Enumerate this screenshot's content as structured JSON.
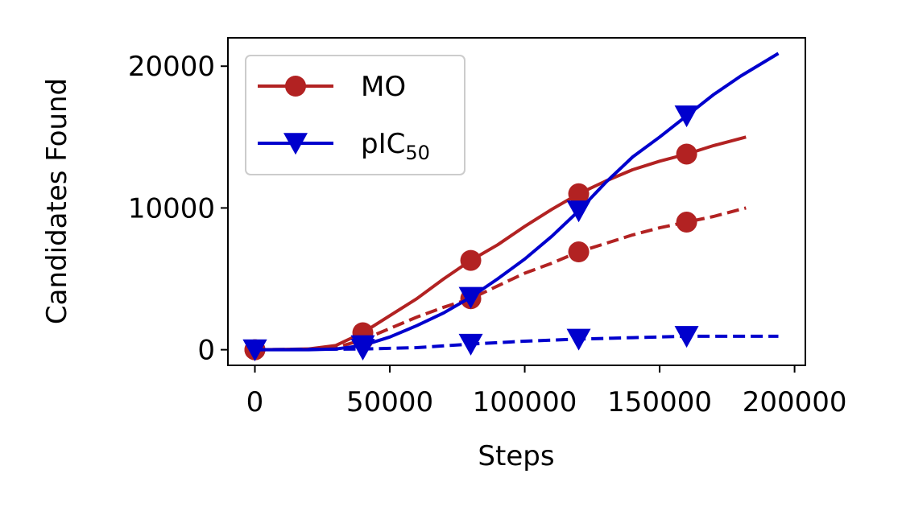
{
  "chart_data": {
    "type": "line",
    "xlabel": "Steps",
    "ylabel": "Candidates Found",
    "xlim": [
      -10000,
      204000
    ],
    "ylim": [
      -1100,
      22000
    ],
    "xticks": [
      {
        "value": 0,
        "label": "0"
      },
      {
        "value": 50000,
        "label": "50000"
      },
      {
        "value": 100000,
        "label": "100000"
      },
      {
        "value": 150000,
        "label": "150000"
      },
      {
        "value": 200000,
        "label": "200000"
      }
    ],
    "yticks": [
      {
        "value": 0,
        "label": "0"
      },
      {
        "value": 10000,
        "label": "10000"
      },
      {
        "value": 20000,
        "label": "20000"
      }
    ],
    "grid": false,
    "legend_position": "top-left",
    "legend": [
      {
        "label": "MO",
        "sub": "",
        "color": "#b22222",
        "marker": "circle"
      },
      {
        "label": "pIC",
        "sub": "50",
        "color": "#0000cd",
        "marker": "triangle-down"
      }
    ],
    "series": [
      {
        "legend_index": 0,
        "color": "#b22222",
        "linestyle": "solid",
        "marker": "circle",
        "x": [
          0,
          10000,
          20000,
          30000,
          40000,
          50000,
          60000,
          70000,
          80000,
          90000,
          100000,
          110000,
          120000,
          130000,
          140000,
          150000,
          160000,
          170000,
          182000
        ],
        "y": [
          0,
          20,
          60,
          300,
          1200,
          2400,
          3600,
          5000,
          6300,
          7400,
          8700,
          9900,
          11000,
          11900,
          12700,
          13300,
          13800,
          14400,
          15000
        ],
        "markers_x": [
          0,
          40000,
          80000,
          120000,
          160000
        ],
        "markers_y": [
          0,
          1200,
          6300,
          11000,
          13800
        ]
      },
      {
        "legend_index": 0,
        "color": "#b22222",
        "linestyle": "dashed",
        "marker": "circle",
        "x": [
          0,
          20000,
          30000,
          40000,
          50000,
          60000,
          70000,
          80000,
          90000,
          100000,
          110000,
          120000,
          130000,
          140000,
          150000,
          160000,
          170000,
          182000
        ],
        "y": [
          0,
          30,
          150,
          700,
          1500,
          2300,
          3000,
          3600,
          4500,
          5400,
          6100,
          6900,
          7500,
          8100,
          8600,
          9000,
          9400,
          10000
        ],
        "markers_x": [
          0,
          40000,
          80000,
          120000,
          160000
        ],
        "markers_y": [
          0,
          700,
          3600,
          6900,
          9000
        ]
      },
      {
        "legend_index": 1,
        "color": "#0000cd",
        "linestyle": "solid",
        "marker": "triangle-down",
        "x": [
          0,
          20000,
          30000,
          40000,
          50000,
          60000,
          70000,
          80000,
          90000,
          100000,
          110000,
          120000,
          130000,
          140000,
          150000,
          160000,
          170000,
          180000,
          194000
        ],
        "y": [
          0,
          0,
          50,
          300,
          900,
          1700,
          2600,
          3700,
          5000,
          6400,
          8000,
          9800,
          11800,
          13600,
          15000,
          16500,
          18000,
          19300,
          20900
        ],
        "markers_x": [
          0,
          40000,
          80000,
          120000,
          160000
        ],
        "markers_y": [
          0,
          300,
          3700,
          9800,
          16500
        ]
      },
      {
        "legend_index": 1,
        "color": "#0000cd",
        "linestyle": "dashed",
        "marker": "triangle-down",
        "x": [
          0,
          40000,
          60000,
          80000,
          100000,
          120000,
          140000,
          160000,
          180000,
          194000
        ],
        "y": [
          0,
          50,
          150,
          400,
          600,
          750,
          850,
          950,
          950,
          950
        ],
        "markers_x": [
          0,
          40000,
          80000,
          120000,
          160000
        ],
        "markers_y": [
          0,
          50,
          400,
          750,
          950
        ]
      }
    ]
  }
}
